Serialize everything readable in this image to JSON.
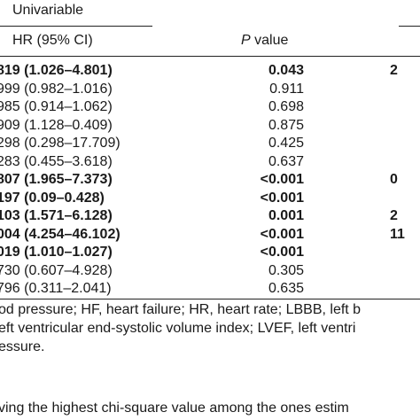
{
  "table": {
    "group_header": "Univariable",
    "columns": {
      "hr": "HR (95% CI)",
      "p_italic": "P",
      "p_rest": " value"
    },
    "rows": [
      {
        "hr": "819 (1.026–4.801)",
        "p": "0.043",
        "extra": "2",
        "bold": true
      },
      {
        "hr": "999 (0.982–1.016)",
        "p": "0.911",
        "extra": "",
        "bold": false
      },
      {
        "hr": "985 (0.914–1.062)",
        "p": "0.698",
        "extra": "",
        "bold": false
      },
      {
        "hr": "909 (1.128–0.409)",
        "p": "0.875",
        "extra": "",
        "bold": false
      },
      {
        "hr": "298 (0.298–17.709)",
        "p": "0.425",
        "extra": "",
        "bold": false
      },
      {
        "hr": "283 (0.455–3.618)",
        "p": "0.637",
        "extra": "",
        "bold": false
      },
      {
        "hr": "807 (1.965–7.373)",
        "p": "<0.001",
        "extra": "0",
        "bold": true
      },
      {
        "hr": "197 (0.09–0.428)",
        "p": "<0.001",
        "extra": "",
        "bold": true
      },
      {
        "hr": "103 (1.571–6.128)",
        "p": "0.001",
        "extra": "2",
        "bold": true
      },
      {
        "hr": "004 (4.254–46.102)",
        "p": "<0.001",
        "extra": "11",
        "bold": true
      },
      {
        "hr": "019 (1.010–1.027)",
        "p": "<0.001",
        "extra": "",
        "bold": true
      },
      {
        "hr": "730 (0.607–4.928)",
        "p": "0.305",
        "extra": "",
        "bold": false
      },
      {
        "hr": "796 (0.311–2.041)",
        "p": "0.635",
        "extra": "",
        "bold": false
      }
    ]
  },
  "notes": [
    "od pressure; HF, heart failure; HR, heart rate; LBBB, left b",
    "eft ventricular end-systolic volume index; LVEF, left ventri",
    "essure."
  ],
  "footnote": "ving the highest chi-square value among the ones estim"
}
